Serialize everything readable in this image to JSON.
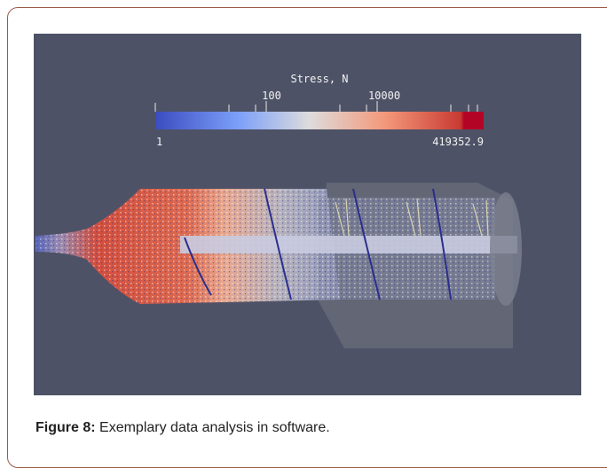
{
  "figure": {
    "colorbar": {
      "title": "Stress, N",
      "ticks": [
        "100",
        "10000"
      ],
      "min_label": "1",
      "max_label": "419352.9"
    },
    "caption": {
      "label": "Figure 8:",
      "text": "Exemplary data analysis in software."
    }
  }
}
